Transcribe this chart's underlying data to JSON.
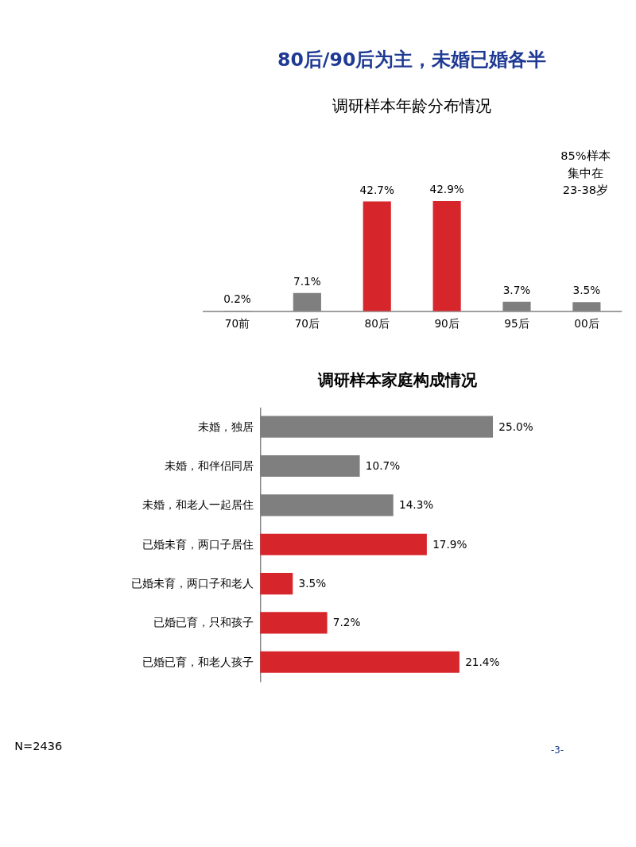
{
  "chart_data": [
    {
      "type": "bar",
      "title": "80后/90后为主，未婚已婚各半",
      "subtitle": "调研样本年龄分布情况",
      "categories": [
        "70前",
        "70后",
        "80后",
        "90后",
        "95后",
        "00后"
      ],
      "values": [
        0.2,
        7.1,
        42.7,
        42.9,
        3.7,
        3.5
      ],
      "value_labels": [
        "0.2%",
        "7.1%",
        "42.7%",
        "42.9%",
        "3.7%",
        "3.5%"
      ],
      "colors": [
        "#7f7f7f",
        "#7f7f7f",
        "#d7262b",
        "#d7262b",
        "#7f7f7f",
        "#7f7f7f"
      ],
      "annotations": [
        "85%样本",
        "集中在",
        "23-38岁"
      ],
      "grid": false,
      "tick_labels": "x"
    },
    {
      "type": "bar",
      "orientation": "horizontal",
      "title": "调研样本家庭构成情况",
      "categories": [
        "未婚，独居",
        "未婚，和伴侣同居",
        "未婚，和老人一起居住",
        "已婚未育，两口子居住",
        "已婚未育，两口子和老人",
        "已婚已育，只和孩子",
        "已婚已育，和老人孩子"
      ],
      "values": [
        25.0,
        10.7,
        14.3,
        17.9,
        3.5,
        7.2,
        21.4
      ],
      "value_labels": [
        "25.0%",
        "10.7%",
        "14.3%",
        "17.9%",
        "3.5%",
        "7.2%",
        "21.4%"
      ],
      "colors": [
        "#7f7f7f",
        "#7f7f7f",
        "#7f7f7f",
        "#d7262b",
        "#d7262b",
        "#d7262b",
        "#d7262b"
      ],
      "annotations": [
        "N=2436",
        "-3-"
      ],
      "grid": false,
      "tick_labels": "y"
    }
  ]
}
